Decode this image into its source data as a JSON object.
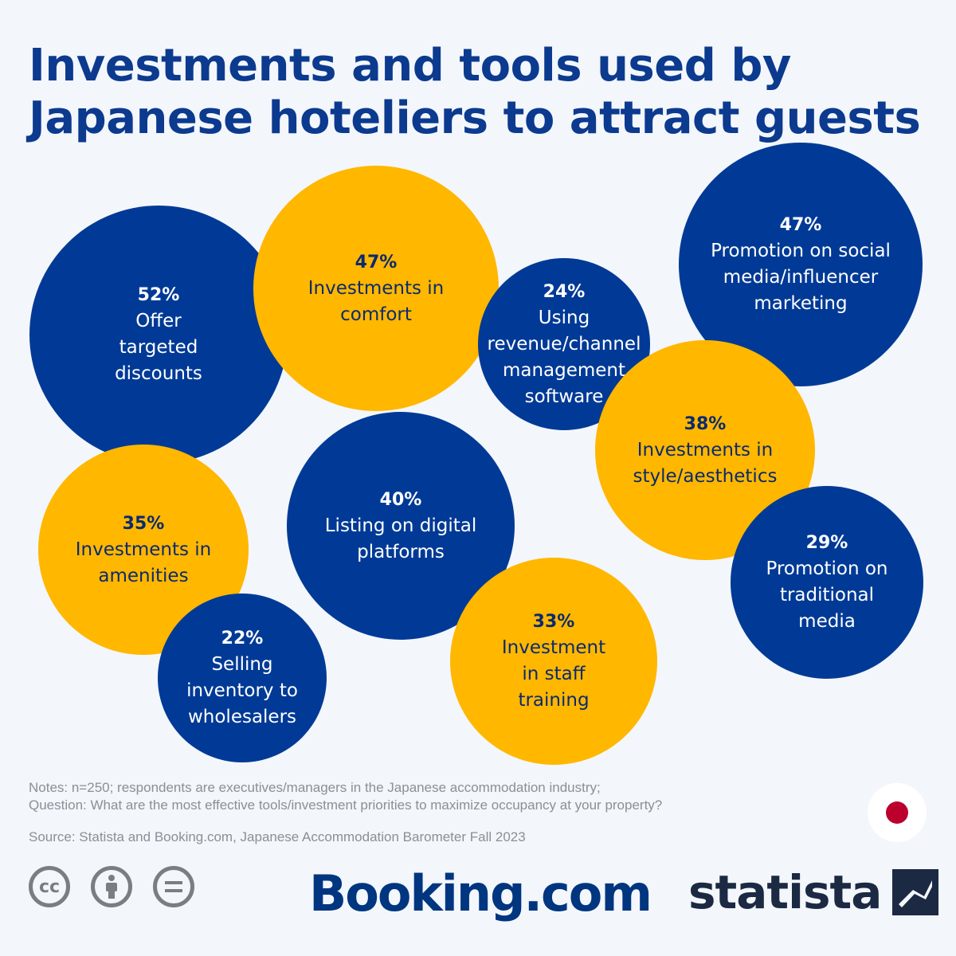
{
  "title": "Investments and tools used by Japanese hoteliers to attract guests",
  "colors": {
    "blue": "#003a96",
    "yellow": "#ffb700",
    "title": "#0b3a8f"
  },
  "chart_data": {
    "type": "bubble",
    "title": "Investments and tools used by Japanese hoteliers to attract guests",
    "items": [
      {
        "value": "52%",
        "label": "Offer\ntargeted\ndiscounts",
        "color": "blue"
      },
      {
        "value": "47%",
        "label": "Investments in\ncomfort",
        "color": "yellow"
      },
      {
        "value": "24%",
        "label": "Using\nrevenue/channel\nmanagement\nsoftware",
        "color": "blue"
      },
      {
        "value": "47%",
        "label": "Promotion on social\nmedia/influencer\nmarketing",
        "color": "blue"
      },
      {
        "value": "38%",
        "label": "Investments in\nstyle/aesthetics",
        "color": "yellow"
      },
      {
        "value": "35%",
        "label": "Investments in\namenities",
        "color": "yellow"
      },
      {
        "value": "40%",
        "label": "Listing on digital\nplatforms",
        "color": "blue"
      },
      {
        "value": "29%",
        "label": "Promotion on\ntraditional\nmedia",
        "color": "blue"
      },
      {
        "value": "33%",
        "label": "Investment\nin staff\ntraining",
        "color": "yellow"
      },
      {
        "value": "22%",
        "label": "Selling\ninventory to\nwholesalers",
        "color": "blue"
      }
    ]
  },
  "notes": {
    "line1": "Notes: n=250; respondents are executives/managers in the Japanese accommodation industry;",
    "line2": "Question: What are the most effective tools/investment priorities to maximize occupancy at your property?"
  },
  "source": "Source: Statista and Booking.com, Japanese Accommodation Barometer Fall 2023",
  "license_icons": [
    "cc-icon",
    "attribution-icon",
    "no-derivatives-icon"
  ],
  "brands": {
    "booking": "Booking.com",
    "statista": "statista"
  },
  "flag": "japan-flag-icon"
}
